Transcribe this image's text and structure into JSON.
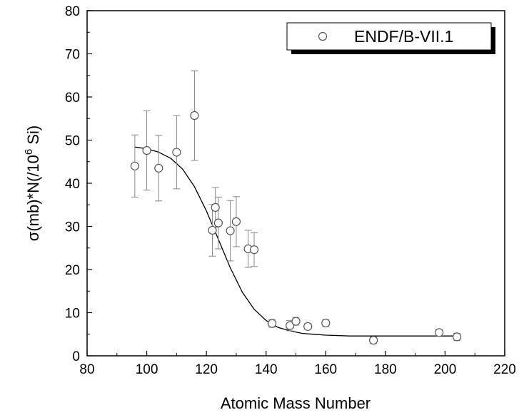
{
  "chart_data": {
    "type": "scatter",
    "title": "",
    "xlabel": "Atomic Mass Number",
    "ylabel_main": "σ(mb)*N(/10",
    "ylabel_sup": "6",
    "ylabel_tail": " Si)",
    "xlim": [
      80,
      220
    ],
    "ylim": [
      0,
      80
    ],
    "xticks": [
      80,
      100,
      120,
      140,
      160,
      180,
      200,
      220
    ],
    "yticks": [
      0,
      10,
      20,
      30,
      40,
      50,
      60,
      70,
      80
    ],
    "grid": false,
    "legend": {
      "placement": "top-right",
      "entries": [
        "ENDF/B-VII.1"
      ]
    },
    "series": [
      {
        "name": "ENDF/B-VII.1",
        "marker": "open-circle",
        "points": [
          {
            "x": 96,
            "y": 44.0,
            "err": 7.2
          },
          {
            "x": 100,
            "y": 47.6,
            "err": 9.2
          },
          {
            "x": 104,
            "y": 43.5,
            "err": 7.6
          },
          {
            "x": 110,
            "y": 47.2,
            "err": 8.5
          },
          {
            "x": 116,
            "y": 55.7,
            "err": 10.4
          },
          {
            "x": 122,
            "y": 29.1,
            "err": 6.0
          },
          {
            "x": 123,
            "y": 34.4,
            "err": 4.6
          },
          {
            "x": 124,
            "y": 30.8,
            "err": 6.0
          },
          {
            "x": 128,
            "y": 29.0,
            "err": 7.0
          },
          {
            "x": 130,
            "y": 31.1,
            "err": 5.8
          },
          {
            "x": 134,
            "y": 24.8,
            "err": 4.3
          },
          {
            "x": 136,
            "y": 24.6,
            "err": 3.9
          },
          {
            "x": 142,
            "y": 7.5,
            "err": 0.9
          },
          {
            "x": 148,
            "y": 7.0,
            "err": 1.2
          },
          {
            "x": 150,
            "y": 8.0,
            "err": 0.9
          },
          {
            "x": 154,
            "y": 6.8,
            "err": 0.6
          },
          {
            "x": 160,
            "y": 7.6,
            "err": 0.8
          },
          {
            "x": 176,
            "y": 3.6,
            "err": 0.8
          },
          {
            "x": 198,
            "y": 5.4,
            "err": 0.7
          },
          {
            "x": 204,
            "y": 4.4,
            "err": 0.8
          }
        ]
      },
      {
        "name": "",
        "style": "line",
        "x": [
          96,
          100,
          104,
          108,
          112,
          116,
          120,
          124,
          128,
          132,
          136,
          140,
          144,
          148,
          152,
          156,
          160,
          168,
          176,
          184,
          192,
          200,
          204
        ],
        "y": [
          48.4,
          48.0,
          47.2,
          45.8,
          43.3,
          39.2,
          33.6,
          27.0,
          20.4,
          14.8,
          10.8,
          8.2,
          6.6,
          5.8,
          5.2,
          5.0,
          4.8,
          4.6,
          4.6,
          4.6,
          4.6,
          4.6,
          4.6
        ]
      }
    ]
  }
}
